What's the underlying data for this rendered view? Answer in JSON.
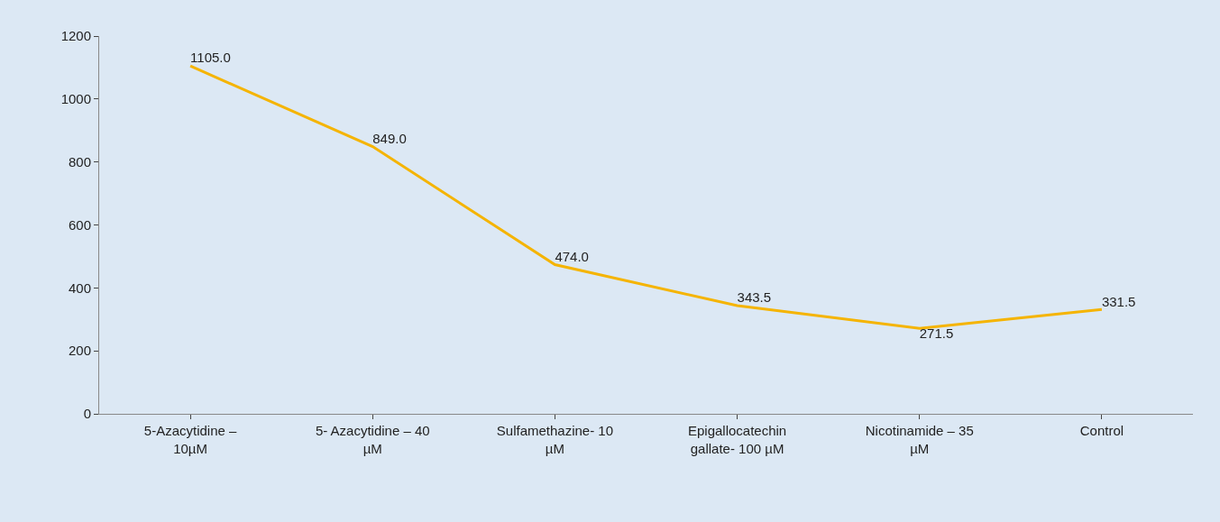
{
  "chart_data": {
    "type": "line",
    "categories": [
      "5-Azacytidine –\n10µM",
      "5- Azacytidine – 40\nµM",
      "Sulfamethazine- 10\nµM",
      "Epigallocatechin\ngallate- 100 µM",
      "Nicotinamide – 35\nµM",
      "Control"
    ],
    "series": [
      {
        "color": "#f5b400",
        "values": [
          1105.0,
          849.0,
          474.0,
          343.5,
          271.5,
          331.5
        ],
        "value_labels": [
          "1105.0",
          "849.0",
          "474.0",
          "343.5",
          "271.5",
          "331.5"
        ]
      }
    ],
    "ylim": [
      0,
      1200
    ],
    "yticks": [
      0,
      200,
      400,
      600,
      800,
      1000,
      1200
    ],
    "grid": false,
    "marker": "none",
    "line_style": "solid"
  }
}
